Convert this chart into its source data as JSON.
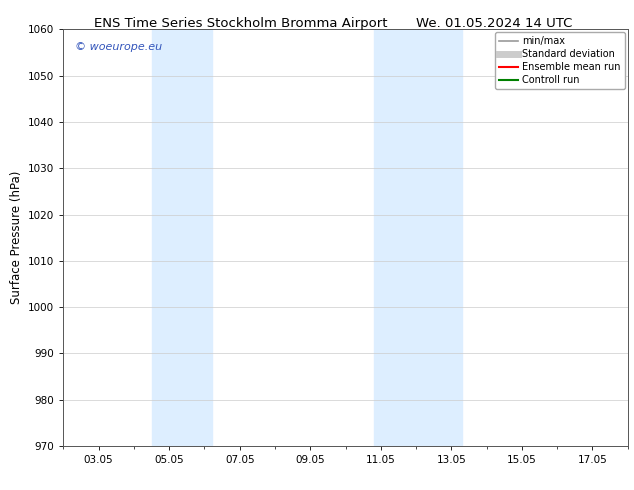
{
  "title_left": "ENS Time Series Stockholm Bromma Airport",
  "title_right": "We. 01.05.2024 14 UTC",
  "ylabel": "Surface Pressure (hPa)",
  "ylim": [
    970,
    1060
  ],
  "yticks": [
    970,
    980,
    990,
    1000,
    1010,
    1020,
    1030,
    1040,
    1050,
    1060
  ],
  "xtick_labels": [
    "03.05",
    "05.05",
    "07.05",
    "09.05",
    "11.05",
    "13.05",
    "15.05",
    "17.05"
  ],
  "xtick_positions": [
    3,
    5,
    7,
    9,
    11,
    13,
    15,
    17
  ],
  "xlim": [
    2,
    18
  ],
  "shaded_bands": [
    {
      "x_start": 4.5,
      "x_end": 6.2
    },
    {
      "x_start": 10.8,
      "x_end": 13.3
    }
  ],
  "band_color": "#ddeeff",
  "watermark": "© woeurope.eu",
  "watermark_color": "#3355bb",
  "legend_items": [
    {
      "label": "min/max",
      "color": "#999999",
      "lw": 1.2,
      "style": "solid"
    },
    {
      "label": "Standard deviation",
      "color": "#cccccc",
      "lw": 5,
      "style": "solid"
    },
    {
      "label": "Ensemble mean run",
      "color": "#ff0000",
      "lw": 1.5,
      "style": "solid"
    },
    {
      "label": "Controll run",
      "color": "#008000",
      "lw": 1.5,
      "style": "solid"
    }
  ],
  "background_color": "#ffffff",
  "grid_color": "#cccccc",
  "title_fontsize": 9.5,
  "ylabel_fontsize": 8.5,
  "tick_fontsize": 7.5,
  "watermark_fontsize": 8,
  "legend_fontsize": 7
}
